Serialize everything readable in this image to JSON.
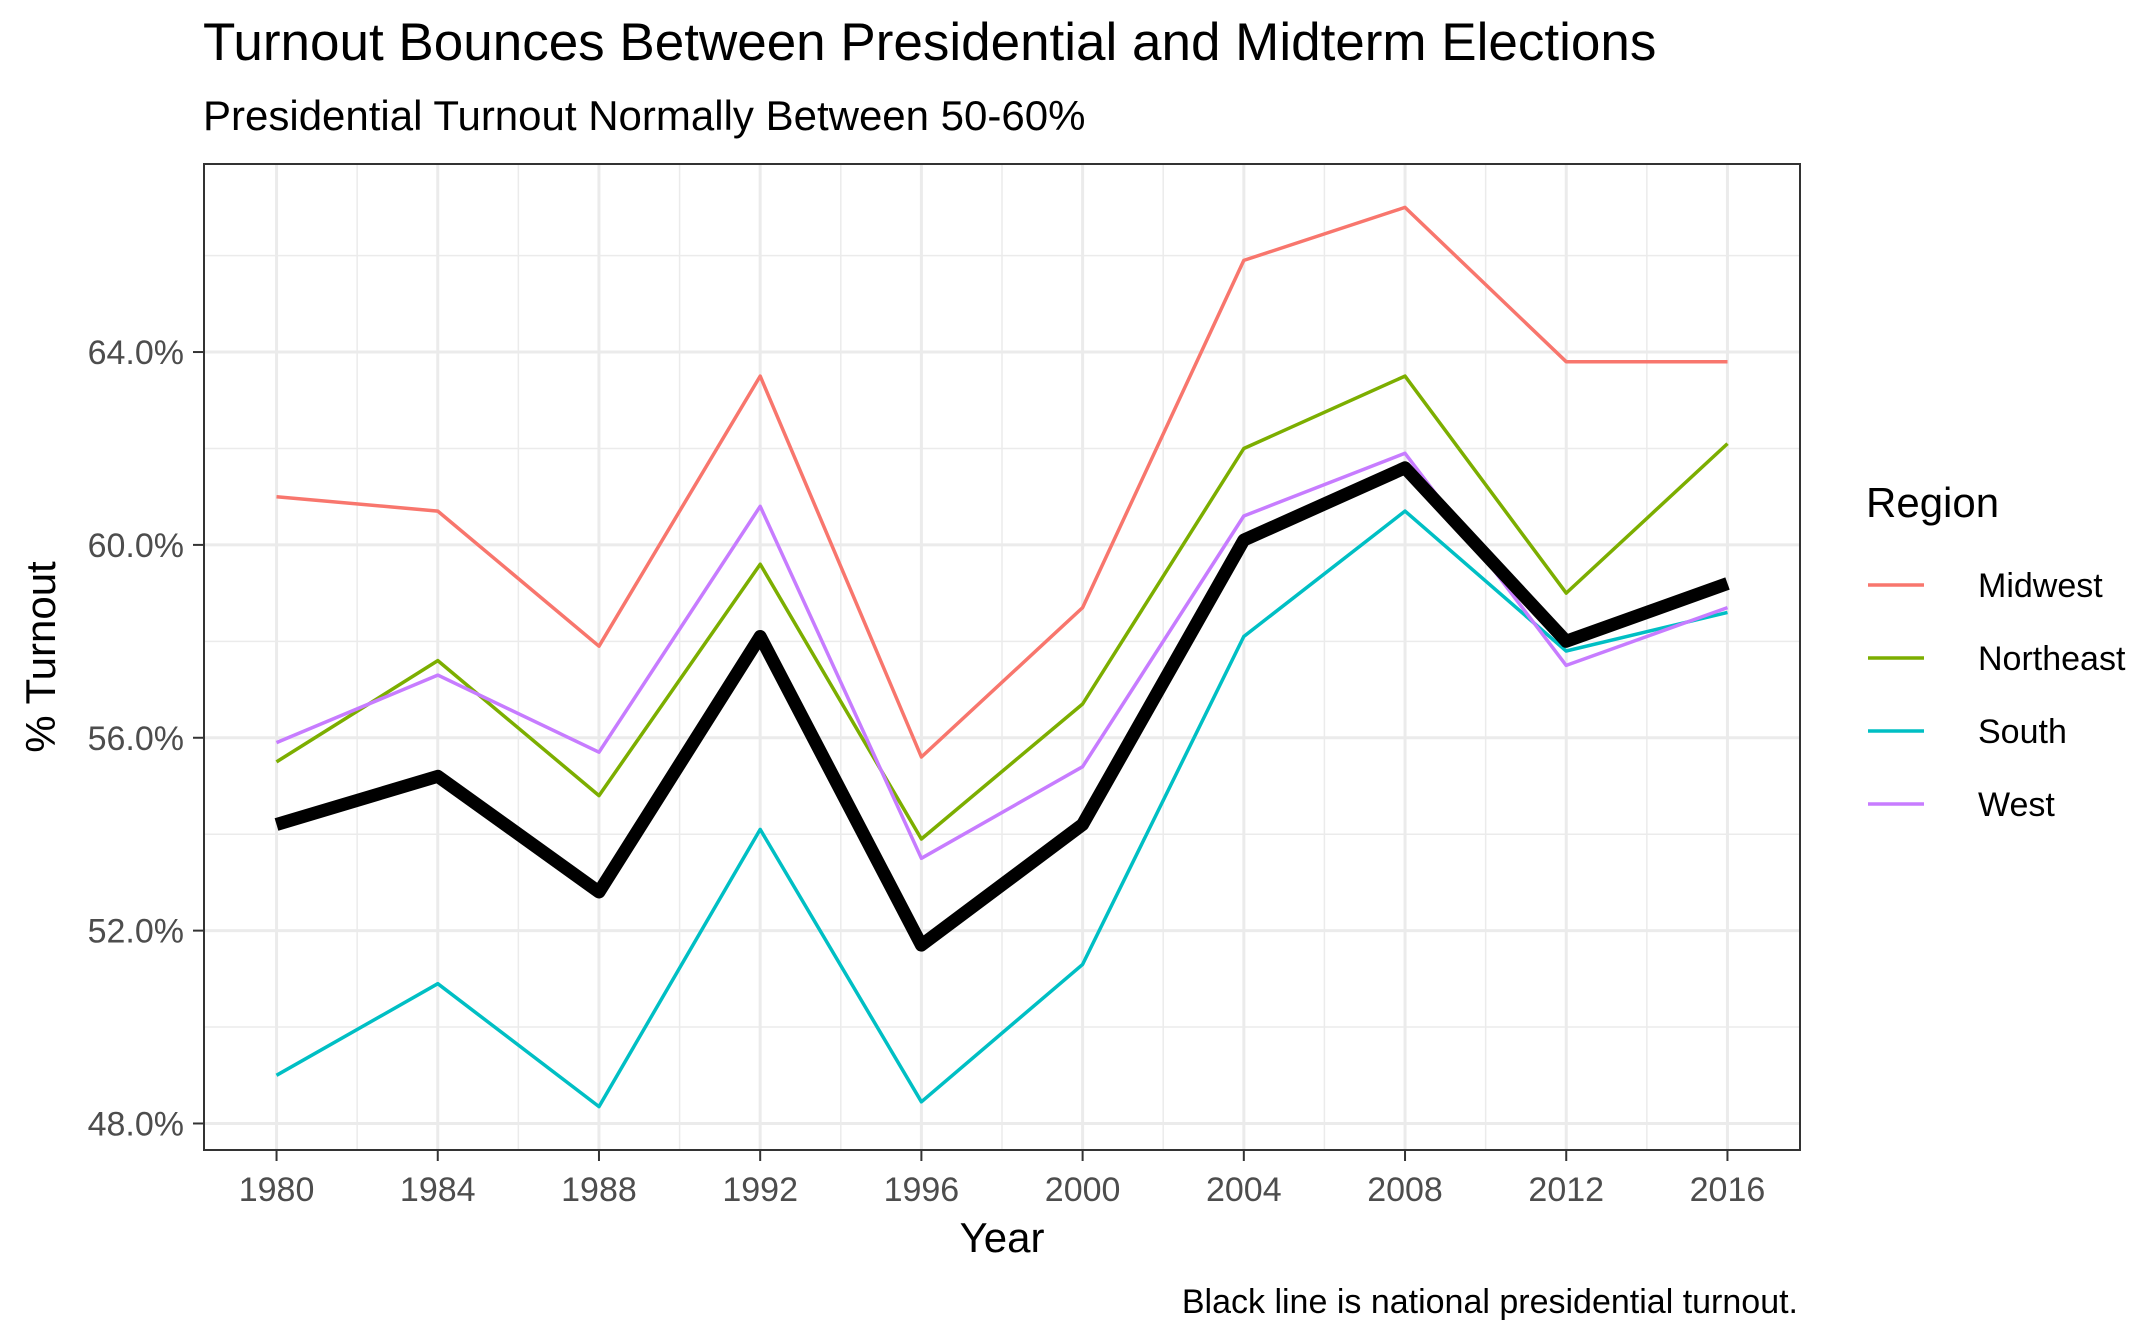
{
  "chart_data": {
    "type": "line",
    "title": "Turnout Bounces Between Presidential and Midterm Elections",
    "subtitle": "Presidential Turnout Normally Between 50-60%",
    "xlabel": "Year",
    "ylabel": "% Turnout",
    "caption": "Black line is national presidential turnout.",
    "x": [
      1980,
      1984,
      1988,
      1992,
      1996,
      2000,
      2004,
      2008,
      2012,
      2016
    ],
    "x_tick_labels": [
      "1980",
      "1984",
      "1988",
      "1992",
      "1996",
      "2000",
      "2004",
      "2008",
      "2012",
      "2016"
    ],
    "xlim": [
      1978.2,
      2017.8
    ],
    "ylim": [
      47.45,
      67.9
    ],
    "y_ticks": [
      48,
      52,
      56,
      60,
      64
    ],
    "y_tick_labels": [
      "48.0%",
      "52.0%",
      "56.0%",
      "60.0%",
      "64.0%"
    ],
    "grid": true,
    "legend": {
      "title": "Region",
      "position": "right"
    },
    "series": [
      {
        "name": "Midwest",
        "color": "#F8766D",
        "values": [
          61.0,
          60.7,
          57.9,
          63.5,
          55.6,
          58.7,
          65.9,
          67.0,
          63.8,
          63.8
        ]
      },
      {
        "name": "Northeast",
        "color": "#7CAE00",
        "values": [
          55.5,
          57.6,
          54.8,
          59.6,
          53.9,
          56.7,
          62.0,
          63.5,
          59.0,
          62.1
        ]
      },
      {
        "name": "South",
        "color": "#00BFC4",
        "values": [
          49.0,
          50.9,
          48.35,
          54.1,
          48.45,
          51.3,
          58.1,
          60.7,
          57.8,
          58.6
        ]
      },
      {
        "name": "West",
        "color": "#C77CFF",
        "values": [
          55.9,
          57.3,
          55.7,
          60.8,
          53.5,
          55.4,
          60.6,
          61.9,
          57.5,
          58.7
        ]
      }
    ],
    "national": {
      "color": "#000000",
      "values": [
        54.2,
        55.2,
        52.8,
        58.1,
        51.7,
        54.2,
        60.1,
        61.6,
        58.0,
        59.2
      ]
    }
  }
}
